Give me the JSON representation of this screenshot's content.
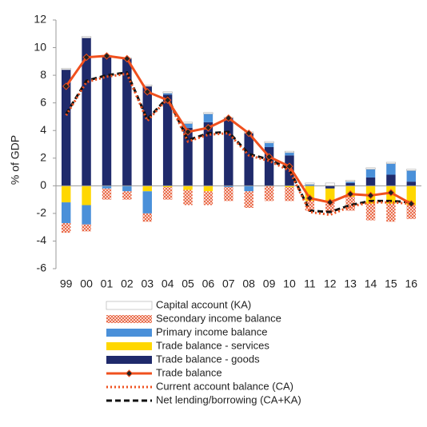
{
  "chart_data": {
    "type": "bar",
    "y_label": "% of GDP",
    "categories": [
      "99",
      "00",
      "01",
      "02",
      "03",
      "04",
      "05",
      "06",
      "07",
      "08",
      "09",
      "10",
      "11",
      "12",
      "13",
      "14",
      "15",
      "16"
    ],
    "ylim": [
      -6,
      12
    ],
    "yticks": [
      -6,
      -4,
      -2,
      0,
      2,
      4,
      6,
      8,
      10,
      12
    ],
    "series": [
      {
        "name": "Capital account (KA)",
        "type": "bar",
        "color": "#ffffff",
        "values": [
          0.1,
          0.1,
          0.05,
          0.05,
          0.1,
          0.1,
          0.1,
          0.1,
          0.05,
          0.1,
          0.1,
          0.1,
          0.1,
          0.2,
          0.1,
          0.1,
          0.1,
          0.1
        ]
      },
      {
        "name": "Secondary income balance",
        "type": "bar",
        "color": "#e8603c",
        "hatch": true,
        "values": [
          -0.7,
          -0.5,
          -0.8,
          -0.6,
          -0.6,
          -0.9,
          -1.1,
          -1.0,
          -1.0,
          -1.2,
          -1.1,
          -1.0,
          -0.7,
          -0.8,
          -1.0,
          -1.2,
          -1.3,
          -1.0
        ]
      },
      {
        "name": "Primary income balance",
        "type": "bar",
        "color": "#4a90d9",
        "values": [
          -1.5,
          -1.4,
          -0.2,
          -0.4,
          -1.6,
          0.1,
          0.3,
          0.6,
          -0.1,
          -0.4,
          0.3,
          0.2,
          0.1,
          0,
          0.1,
          0.6,
          0.8,
          0.8
        ]
      },
      {
        "name": "Trade balance - services",
        "type": "bar",
        "color": "#ffd700",
        "values": [
          -1.2,
          -1.4,
          0,
          0,
          -0.4,
          -0.1,
          -0.3,
          -0.4,
          0,
          0,
          0,
          -0.1,
          -1.1,
          -0.9,
          -0.8,
          -1.3,
          -1.3,
          -1.4
        ]
      },
      {
        "name": "Trade balance - goods",
        "type": "bar",
        "color": "#1f2a6b",
        "values": [
          8.4,
          10.7,
          9.4,
          9.2,
          7.2,
          6.6,
          4.2,
          4.6,
          4.9,
          3.8,
          2.8,
          2.2,
          0,
          -0.2,
          0.2,
          0.6,
          0.8,
          0.3
        ]
      },
      {
        "name": "Trade balance",
        "type": "line",
        "style": "solid",
        "marker": "diamond",
        "color": "#f0501e",
        "values": [
          7.2,
          9.3,
          9.4,
          9.2,
          6.8,
          6.2,
          3.9,
          4.2,
          4.9,
          3.8,
          2.1,
          1.4,
          -0.9,
          -1.2,
          -0.6,
          -0.7,
          -0.5,
          -1.3
        ]
      },
      {
        "name": "Current account balance (CA)",
        "type": "line",
        "style": "dotted",
        "color": "#f0501e",
        "values": [
          5.1,
          7.5,
          7.9,
          8.1,
          4.7,
          6.3,
          3.2,
          3.7,
          3.8,
          2.2,
          1.8,
          1.1,
          -1.9,
          -2.1,
          -1.5,
          -1.2,
          -1.2,
          -1.3
        ]
      },
      {
        "name": "Net lending/borrowing (CA+KA)",
        "type": "line",
        "style": "dashed",
        "color": "#111111",
        "values": [
          5.2,
          7.6,
          8.0,
          8.2,
          4.8,
          6.4,
          3.3,
          3.8,
          3.9,
          2.3,
          1.9,
          1.2,
          -1.8,
          -1.9,
          -1.4,
          -1.1,
          -1.1,
          -1.2
        ]
      }
    ]
  }
}
